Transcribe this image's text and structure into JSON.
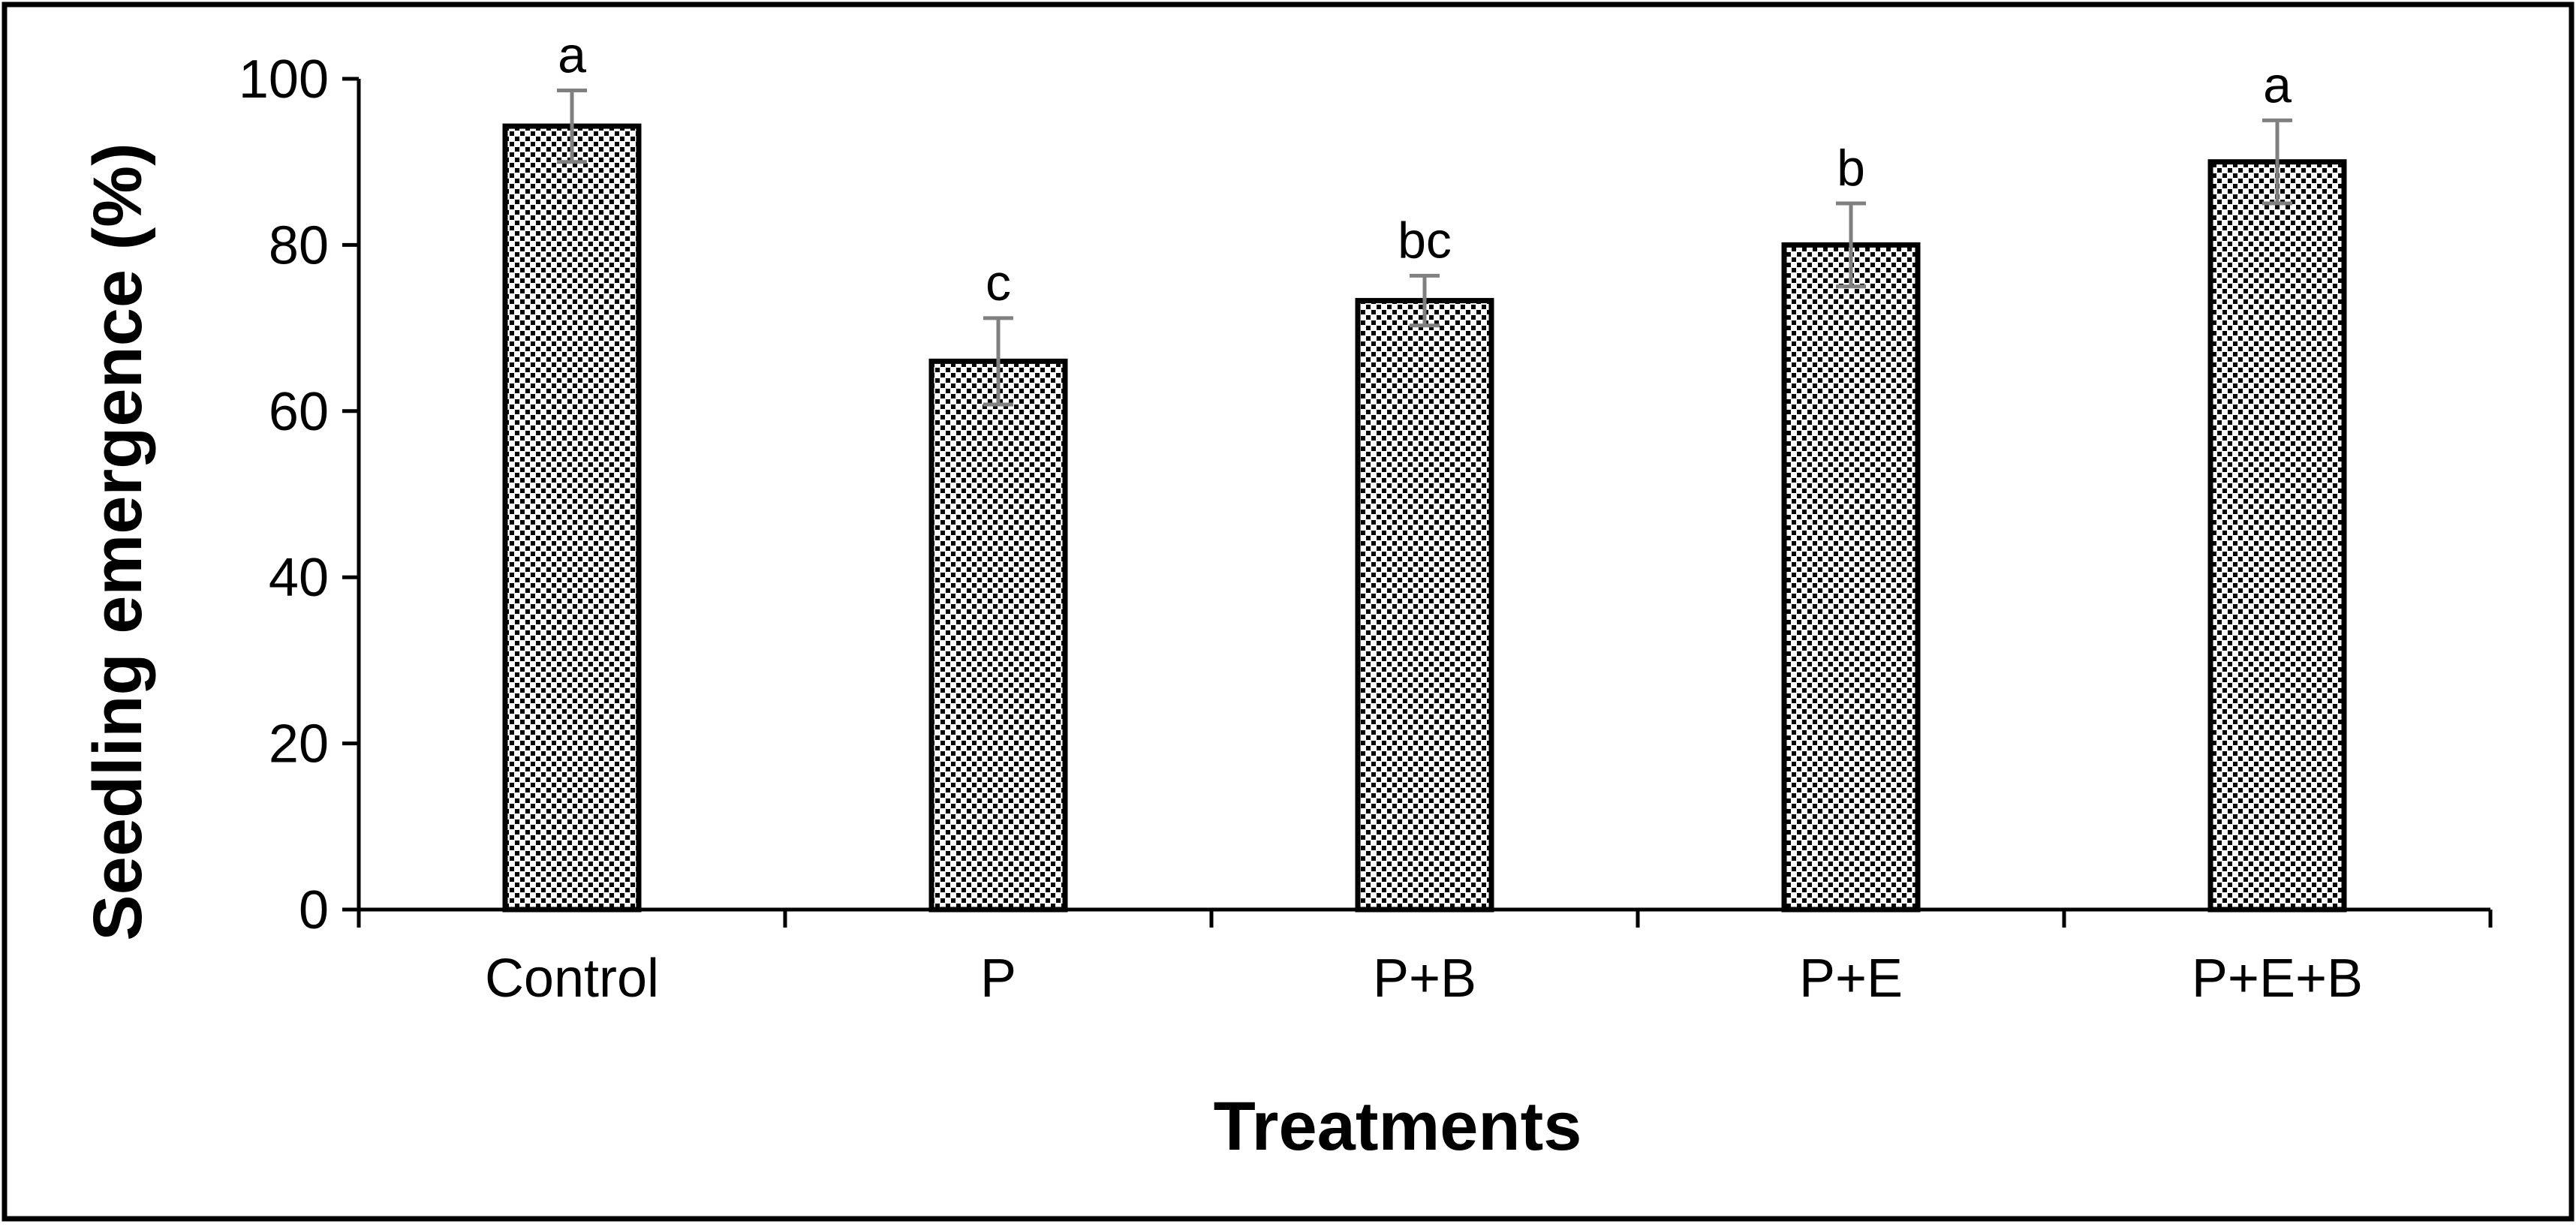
{
  "chart_data": {
    "type": "bar",
    "title": "",
    "xlabel": "Treatments",
    "ylabel": "Seedling emergence (%)",
    "ylim": [
      0,
      100
    ],
    "yticks": [
      0,
      20,
      40,
      60,
      80,
      100
    ],
    "grid": false,
    "categories": [
      "Control",
      "P",
      "P+B",
      "P+E",
      "P+E+B"
    ],
    "values": [
      94.3,
      66.0,
      73.3,
      80.0,
      90.0
    ],
    "errors": [
      4.3,
      5.2,
      3.0,
      5.0,
      5.0
    ],
    "significance": [
      "a",
      "c",
      "bc",
      "b",
      "a"
    ],
    "colors": {
      "bar_fill": "#ffffff",
      "bar_dots": "#000000",
      "bar_border": "#000000",
      "error_bar": "#808080",
      "axis": "#000000"
    }
  }
}
